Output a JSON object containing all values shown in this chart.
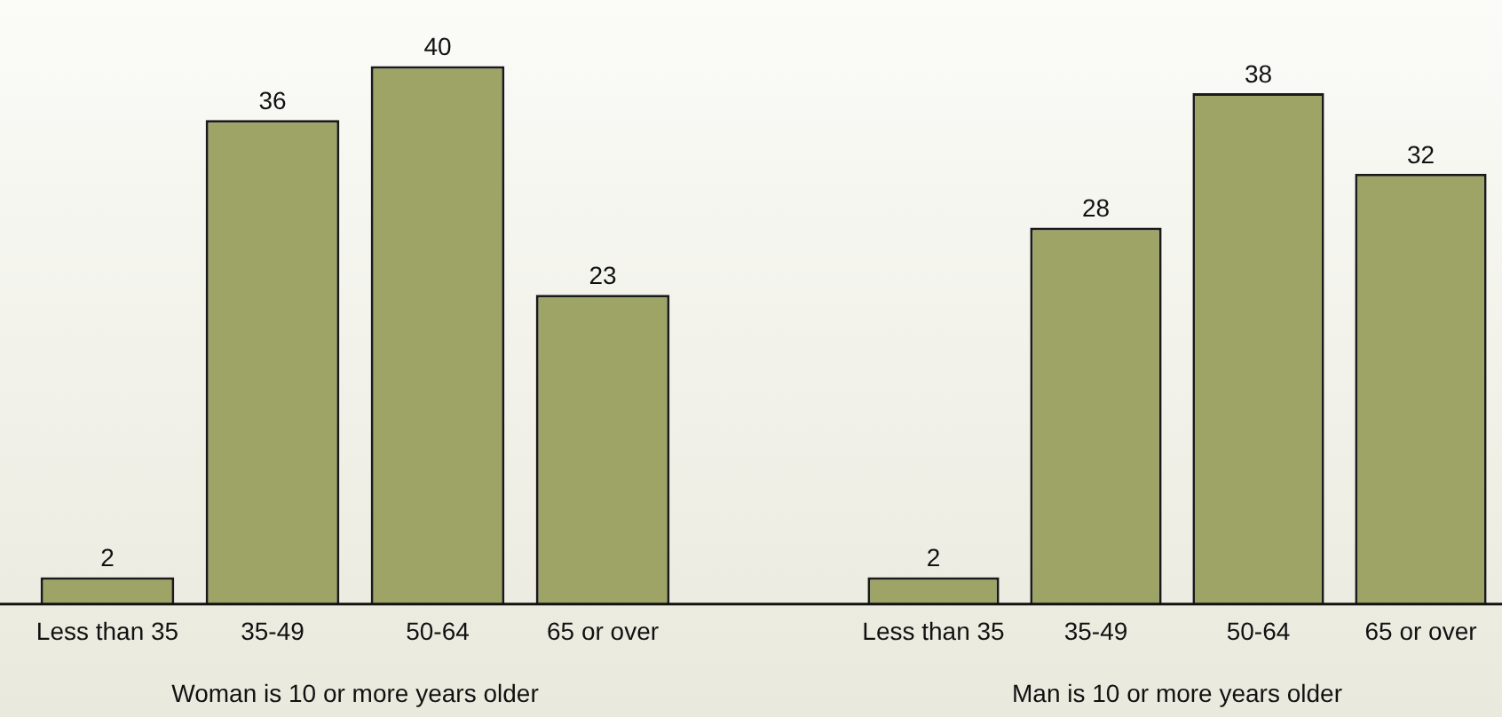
{
  "chart_data": [
    {
      "type": "bar",
      "xlabel": "Woman is 10 or more years older",
      "categories": [
        "Less than 35",
        "35-49",
        "50-64",
        "65 or over"
      ],
      "values": [
        2,
        36,
        40,
        23
      ],
      "color": "#9da466",
      "data_labels": true,
      "grid": false,
      "tick_labels": "x"
    },
    {
      "type": "bar",
      "xlabel": "Man is 10 or more years older",
      "categories": [
        "Less than 35",
        "35-49",
        "50-64",
        "65 or over"
      ],
      "values": [
        2,
        28,
        38,
        32
      ],
      "color": "#9da466",
      "data_labels": true,
      "grid": false,
      "tick_labels": "x"
    }
  ]
}
